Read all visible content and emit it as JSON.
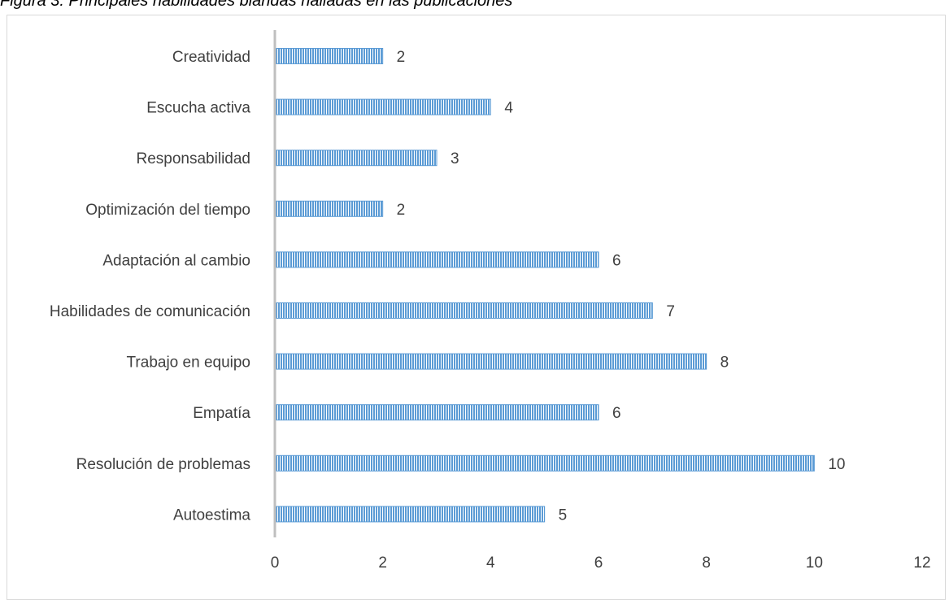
{
  "caption": "Figura 3. Principales habilidades blandas halladas en las publicaciones",
  "chart_data": {
    "type": "bar",
    "orientation": "horizontal",
    "categories": [
      "Creatividad",
      "Escucha activa",
      "Responsabilidad",
      "Optimización del tiempo",
      "Adaptación al cambio",
      "Habilidades de comunicación",
      "Trabajo en equipo",
      "Empatía",
      "Resolución de problemas",
      "Autoestima"
    ],
    "values": [
      2,
      4,
      3,
      2,
      6,
      7,
      8,
      6,
      10,
      5
    ],
    "xlim": [
      0,
      12
    ],
    "x_ticks": [
      0,
      2,
      4,
      6,
      8,
      10,
      12
    ],
    "data_labels": true,
    "grid": false,
    "legend": "none",
    "colors": {
      "bar": "#5b9bd5",
      "bar_stripe": "#ffffff",
      "axis": "#bfbfbf",
      "text": "#404040"
    }
  }
}
